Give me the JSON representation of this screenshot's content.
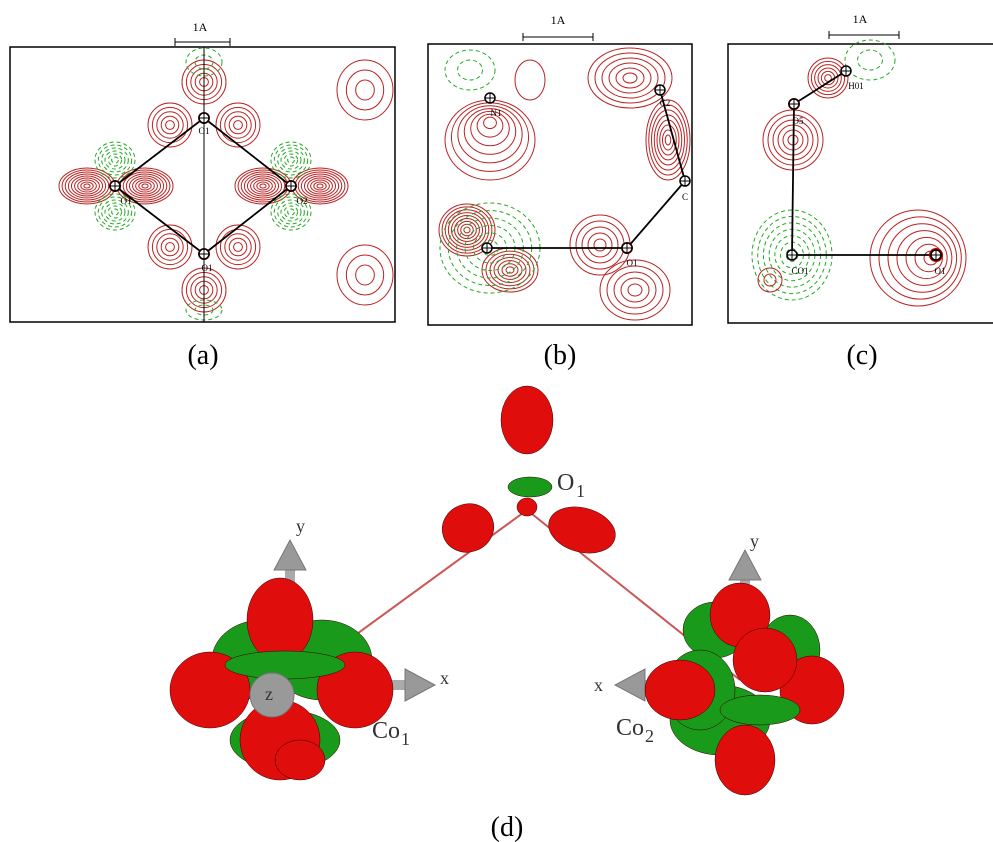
{
  "panels": [
    {
      "caption": "(a)",
      "scale_label": "1A",
      "atoms": [
        "O1",
        "O1",
        "O2",
        "O1"
      ]
    },
    {
      "caption": "(b)",
      "scale_label": "1A",
      "atoms": [
        "N1",
        "C2",
        "C",
        "O1"
      ]
    },
    {
      "caption": "(c)",
      "scale_label": "1A",
      "atoms": [
        "H01",
        "O5",
        "CO1",
        "O1"
      ]
    }
  ],
  "panel_d": {
    "caption": "(d)",
    "atoms": [
      {
        "symbol": "O",
        "index": "1"
      },
      {
        "symbol": "Co",
        "index": "1"
      },
      {
        "symbol": "Co",
        "index": "2"
      }
    ],
    "co1_axes": [
      "y",
      "x",
      "z"
    ],
    "co2_axes": [
      "y",
      "x"
    ]
  }
}
